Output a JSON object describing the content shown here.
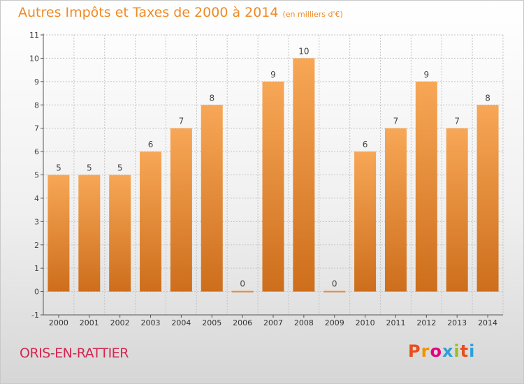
{
  "header": {
    "title": "Autres Impôts et Taxes de 2000 à 2014",
    "unit": "(en milliers d'€)"
  },
  "commune": "ORIS-EN-RATTIER",
  "logo": {
    "text": "Proxiti",
    "letter_colors": [
      "#e94e1b",
      "#f39200",
      "#e6007e",
      "#2e9fd8",
      "#95c11f",
      "#e94e1b",
      "#2e9fd8"
    ]
  },
  "colors": {
    "bar_top": "#f7a756",
    "bar_bottom": "#cd6e1c",
    "title": "#ef8a24",
    "commune": "#d5254f"
  },
  "chart_data": {
    "type": "bar",
    "categories": [
      "2000",
      "2001",
      "2002",
      "2003",
      "2004",
      "2005",
      "2006",
      "2007",
      "2008",
      "2009",
      "2010",
      "2011",
      "2012",
      "2013",
      "2014"
    ],
    "values": [
      5,
      5,
      5,
      6,
      7,
      8,
      0,
      9,
      10,
      0,
      6,
      7,
      9,
      7,
      8
    ],
    "data_labels": [
      "5",
      "5",
      "5",
      "6",
      "7",
      "8",
      "0",
      "9",
      "10",
      "0",
      "6",
      "7",
      "9",
      "7",
      "8"
    ],
    "title": "Autres Impôts et Taxes de 2000 à 2014",
    "xlabel": "",
    "ylabel": "",
    "ylim": [
      -1,
      11
    ],
    "y_ticks": [
      "-1",
      "0",
      "1",
      "2",
      "3",
      "4",
      "5",
      "6",
      "7",
      "8",
      "9",
      "10",
      "11"
    ],
    "grid": true
  }
}
